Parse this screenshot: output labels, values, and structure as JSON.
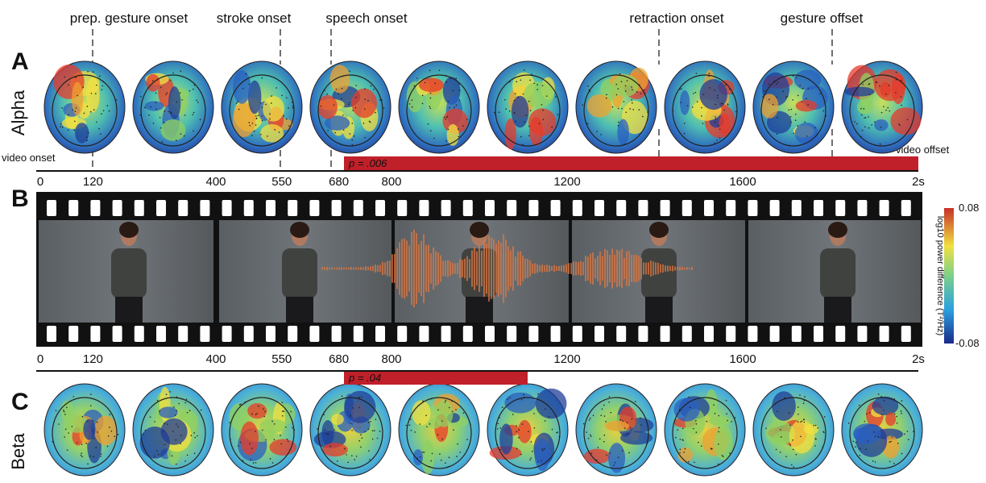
{
  "events": [
    "prep. gesture onset",
    "stroke onset",
    "speech onset",
    "retraction onset",
    "gesture offset"
  ],
  "panel_a": {
    "letter": "A",
    "band": "Alpha",
    "video_onset": "video onset",
    "video_offset": "video offset",
    "significance": "p = .006"
  },
  "timeline_a": [
    0,
    120,
    400,
    550,
    680,
    800,
    1200,
    1600,
    {
      "value": 2000,
      "label": "2s"
    }
  ],
  "panel_b": {
    "letter": "B"
  },
  "timeline_b": [
    0,
    120,
    400,
    550,
    680,
    800,
    1200,
    1600,
    {
      "value": 2000,
      "label": "2s"
    }
  ],
  "panel_c": {
    "letter": "C",
    "band": "Beta",
    "significance": "p = .04"
  },
  "colorbar": {
    "title": "log10 power difference (T²/Hz)",
    "max": "0.08",
    "min": "-0.08"
  }
}
